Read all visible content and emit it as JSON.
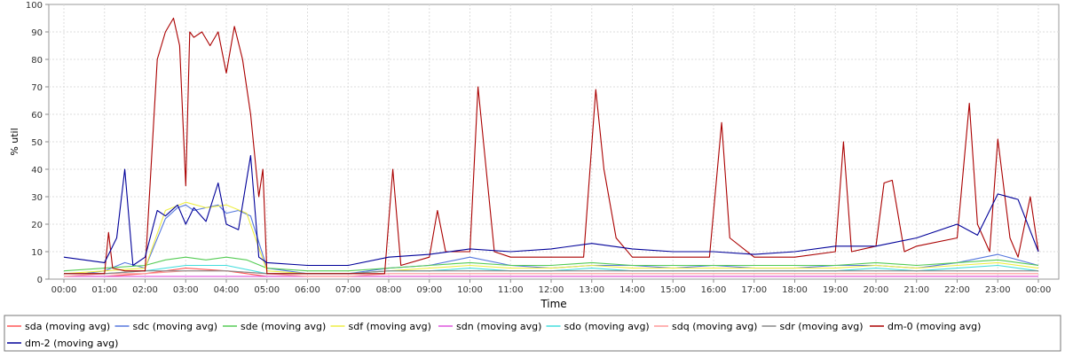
{
  "chart_data": {
    "type": "line",
    "title": "",
    "xlabel": "Time",
    "ylabel": "% util",
    "ylim": [
      0,
      100
    ],
    "xlim": [
      "00:00",
      "00:00 (next day)"
    ],
    "grid": true,
    "legend_position": "bottom",
    "x_ticks": [
      "00:00",
      "01:00",
      "02:00",
      "03:00",
      "04:00",
      "05:00",
      "06:00",
      "07:00",
      "08:00",
      "09:00",
      "10:00",
      "11:00",
      "12:00",
      "13:00",
      "14:00",
      "15:00",
      "16:00",
      "17:00",
      "18:00",
      "19:00",
      "20:00",
      "21:00",
      "22:00",
      "23:00",
      "00:00"
    ],
    "y_ticks": [
      0,
      10,
      20,
      30,
      40,
      50,
      60,
      70,
      80,
      90,
      100
    ],
    "series": [
      {
        "name": "sda (moving avg)",
        "color": "#ff5555",
        "x_hours": [
          0,
          1,
          2,
          3,
          4,
          5,
          6,
          7,
          8,
          9,
          10,
          11,
          12,
          13,
          14,
          15,
          16,
          17,
          18,
          19,
          20,
          21,
          22,
          23,
          24
        ],
        "values": [
          1,
          1,
          2,
          4,
          3,
          1,
          1,
          1,
          1,
          1,
          1,
          1,
          1,
          1,
          1,
          1,
          1,
          1,
          1,
          1,
          1,
          1,
          1,
          1,
          1
        ]
      },
      {
        "name": "sdc (moving avg)",
        "color": "#5577dd",
        "x_hours": [
          0,
          0.5,
          1,
          1.5,
          2,
          2.5,
          2.8,
          3,
          3.2,
          3.5,
          3.8,
          4,
          4.3,
          4.6,
          5,
          6,
          7,
          8,
          9,
          10,
          11,
          12,
          13,
          14,
          15,
          16,
          17,
          18,
          19,
          20,
          21,
          22,
          23,
          24
        ],
        "values": [
          2,
          2,
          3,
          6,
          4,
          22,
          26,
          27,
          25,
          26,
          27,
          24,
          25,
          23,
          4,
          2,
          2,
          4,
          5,
          8,
          5,
          4,
          5,
          5,
          4,
          5,
          4,
          4,
          5,
          5,
          4,
          6,
          9,
          5
        ]
      },
      {
        "name": "sde (moving avg)",
        "color": "#55cc55",
        "x_hours": [
          0,
          1,
          2,
          2.5,
          3,
          3.5,
          4,
          4.5,
          5,
          6,
          7,
          8,
          9,
          10,
          11,
          12,
          13,
          14,
          15,
          16,
          17,
          18,
          19,
          20,
          21,
          22,
          23,
          24
        ],
        "values": [
          3,
          4,
          5,
          7,
          8,
          7,
          8,
          7,
          4,
          3,
          3,
          4,
          5,
          6,
          5,
          5,
          6,
          5,
          5,
          5,
          5,
          5,
          5,
          6,
          5,
          6,
          7,
          5
        ]
      },
      {
        "name": "sdf (moving avg)",
        "color": "#eeee44",
        "x_hours": [
          0,
          1,
          2,
          2.5,
          3,
          3.5,
          4,
          4.5,
          5,
          6,
          7,
          8,
          9,
          10,
          11,
          12,
          13,
          14,
          15,
          16,
          17,
          18,
          19,
          20,
          21,
          22,
          23,
          24
        ],
        "values": [
          2,
          3,
          4,
          25,
          28,
          26,
          27,
          24,
          3,
          2,
          2,
          3,
          4,
          5,
          4,
          4,
          5,
          4,
          4,
          4,
          4,
          4,
          4,
          5,
          4,
          5,
          6,
          4
        ]
      },
      {
        "name": "sdn (moving avg)",
        "color": "#dd55dd",
        "x_hours": [
          0,
          6,
          12,
          18,
          24
        ],
        "values": [
          1,
          1,
          1,
          1,
          1
        ]
      },
      {
        "name": "sdo (moving avg)",
        "color": "#44dddd",
        "x_hours": [
          0,
          1,
          2,
          3,
          4,
          5,
          6,
          7,
          8,
          9,
          10,
          11,
          12,
          13,
          14,
          15,
          16,
          17,
          18,
          19,
          20,
          21,
          22,
          23,
          24
        ],
        "values": [
          2,
          2,
          3,
          5,
          5,
          2,
          2,
          2,
          3,
          3,
          4,
          3,
          3,
          4,
          3,
          3,
          3,
          3,
          3,
          3,
          4,
          3,
          4,
          5,
          3
        ]
      },
      {
        "name": "sdq (moving avg)",
        "color": "#ff9999",
        "x_hours": [
          0,
          1,
          2,
          3,
          4,
          5,
          6,
          7,
          8,
          9,
          10,
          11,
          12,
          13,
          14,
          15,
          16,
          17,
          18,
          19,
          20,
          21,
          22,
          23,
          24
        ],
        "values": [
          1,
          2,
          2,
          3,
          3,
          2,
          1,
          1,
          2,
          2,
          2,
          2,
          2,
          2,
          2,
          2,
          2,
          2,
          2,
          2,
          2,
          2,
          2,
          2,
          2
        ]
      },
      {
        "name": "sdr (moving avg)",
        "color": "#888888",
        "x_hours": [
          0,
          1,
          2,
          3,
          4,
          5,
          6,
          7,
          8,
          9,
          10,
          11,
          12,
          13,
          14,
          15,
          16,
          17,
          18,
          19,
          20,
          21,
          22,
          23,
          24
        ],
        "values": [
          2,
          2,
          3,
          3,
          3,
          2,
          2,
          2,
          3,
          3,
          3,
          3,
          3,
          3,
          3,
          3,
          3,
          3,
          3,
          3,
          3,
          3,
          3,
          3,
          3
        ]
      },
      {
        "name": "dm-0 (moving avg)",
        "color": "#aa0000",
        "x_hours": [
          0,
          1,
          1.1,
          1.2,
          1.5,
          2,
          2.3,
          2.5,
          2.7,
          2.85,
          3,
          3.1,
          3.2,
          3.4,
          3.6,
          3.8,
          4,
          4.2,
          4.4,
          4.6,
          4.8,
          4.9,
          5,
          6,
          7,
          7.9,
          8.1,
          8.3,
          9,
          9.2,
          9.4,
          10,
          10.2,
          10.4,
          10.6,
          11,
          12,
          12.8,
          13.1,
          13.3,
          13.6,
          14,
          15,
          15.9,
          16.2,
          16.4,
          17,
          18,
          19,
          19.2,
          19.4,
          20,
          20.2,
          20.4,
          20.7,
          21,
          22,
          22.3,
          22.5,
          22.8,
          23,
          23.3,
          23.5,
          23.8,
          24
        ],
        "values": [
          2,
          2,
          17,
          4,
          3,
          3,
          80,
          90,
          95,
          85,
          34,
          90,
          88,
          90,
          85,
          90,
          75,
          92,
          80,
          60,
          30,
          40,
          2,
          2,
          2,
          2,
          40,
          5,
          8,
          25,
          10,
          10,
          70,
          40,
          10,
          8,
          8,
          8,
          69,
          40,
          15,
          8,
          8,
          8,
          57,
          15,
          8,
          8,
          10,
          50,
          10,
          12,
          35,
          36,
          10,
          12,
          15,
          64,
          20,
          10,
          51,
          15,
          8,
          30,
          10
        ]
      },
      {
        "name": "dm-2 (moving avg)",
        "color": "#000099",
        "x_hours": [
          0,
          0.5,
          1,
          1.3,
          1.5,
          1.7,
          2,
          2.3,
          2.5,
          2.8,
          3,
          3.2,
          3.5,
          3.8,
          4,
          4.3,
          4.6,
          4.8,
          5,
          6,
          7,
          8,
          9,
          10,
          11,
          12,
          13,
          14,
          15,
          16,
          17,
          18,
          19,
          20,
          21,
          22,
          22.5,
          23,
          23.5,
          24
        ],
        "values": [
          8,
          7,
          6,
          15,
          40,
          5,
          8,
          25,
          23,
          27,
          20,
          26,
          21,
          35,
          20,
          18,
          45,
          8,
          6,
          5,
          5,
          8,
          9,
          11,
          10,
          11,
          13,
          11,
          10,
          10,
          9,
          10,
          12,
          12,
          15,
          20,
          16,
          31,
          29,
          10
        ]
      }
    ]
  }
}
